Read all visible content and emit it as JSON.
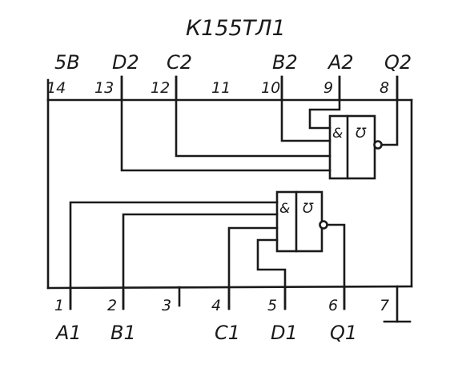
{
  "title": "К155ТЛ1",
  "top_pins": [
    {
      "number": "14",
      "signal": "5В"
    },
    {
      "number": "13",
      "signal": "D2"
    },
    {
      "number": "12",
      "signal": "C2"
    },
    {
      "number": "11",
      "signal": ""
    },
    {
      "number": "10",
      "signal": "В2"
    },
    {
      "number": "9",
      "signal": "А2"
    },
    {
      "number": "8",
      "signal": "Q2"
    }
  ],
  "bottom_pins": [
    {
      "number": "1",
      "signal": "А1"
    },
    {
      "number": "2",
      "signal": "В1"
    },
    {
      "number": "3",
      "signal": ""
    },
    {
      "number": "4",
      "signal": "C1"
    },
    {
      "number": "5",
      "signal": "D1"
    },
    {
      "number": "6",
      "signal": "Q1"
    },
    {
      "number": "7",
      "signal": ""
    }
  ],
  "gates": [
    {
      "and_symbol": "&",
      "schmitt_symbol": "Ʊ"
    },
    {
      "and_symbol": "&",
      "schmitt_symbol": "Ʊ"
    }
  ]
}
